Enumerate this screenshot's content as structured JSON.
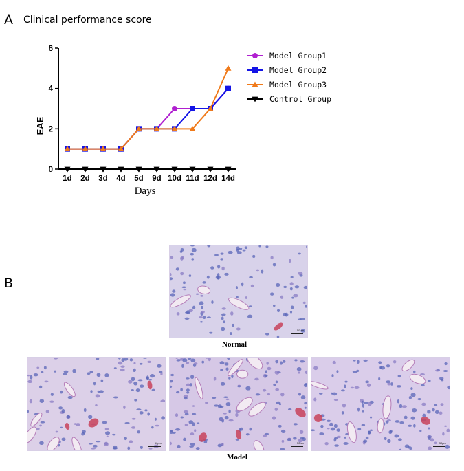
{
  "panel_a": {
    "letter": "A",
    "title": "Clinical performance score"
  },
  "panel_b": {
    "letter": "B",
    "caption_normal": "Normal",
    "caption_model": "Model",
    "scale_label": "50μm"
  },
  "chart_data": {
    "type": "line",
    "categories": [
      "1d",
      "2d",
      "3d",
      "4d",
      "5d",
      "9d",
      "10d",
      "11d",
      "12d",
      "14d"
    ],
    "xlabel": "Days",
    "ylabel": "EAE",
    "ylim": [
      0,
      6
    ],
    "yticks": [
      0,
      2,
      4,
      6
    ],
    "legend_position": "right",
    "series": [
      {
        "name": "Model Group1",
        "color": "#b020d0",
        "marker": "circle",
        "values": [
          1,
          1,
          1,
          1,
          2,
          2,
          3,
          3,
          3,
          4
        ]
      },
      {
        "name": "Model Group2",
        "color": "#1414e6",
        "marker": "square",
        "values": [
          1,
          1,
          1,
          1,
          2,
          2,
          2,
          3,
          3,
          4
        ]
      },
      {
        "name": "Model Group3",
        "color": "#f07a1a",
        "marker": "triangle-up",
        "values": [
          1,
          1,
          1,
          1,
          2,
          2,
          2,
          2,
          3,
          5
        ]
      },
      {
        "name": "Control Group",
        "color": "#000000",
        "marker": "triangle-down",
        "values": [
          0,
          0,
          0,
          0,
          0,
          0,
          0,
          0,
          0,
          0
        ]
      }
    ]
  }
}
